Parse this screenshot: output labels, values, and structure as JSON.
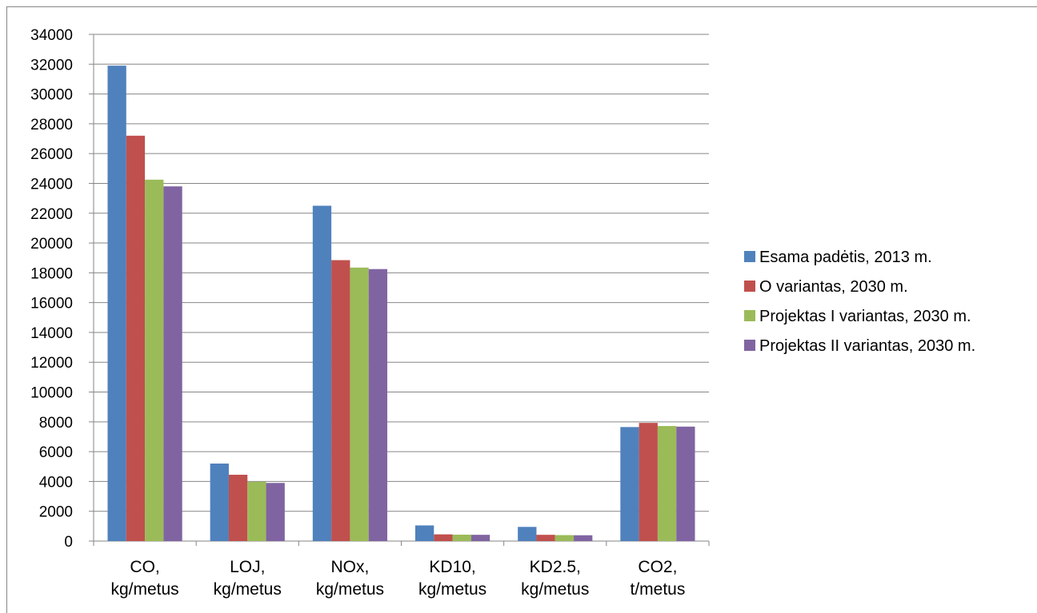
{
  "chart_data": {
    "type": "bar",
    "title": "",
    "xlabel": "",
    "ylabel": "",
    "ylim": [
      0,
      34000
    ],
    "ytick_step": 2000,
    "yticks": [
      "0",
      "2000",
      "4000",
      "6000",
      "8000",
      "10000",
      "12000",
      "14000",
      "16000",
      "18000",
      "20000",
      "22000",
      "24000",
      "26000",
      "28000",
      "30000",
      "32000",
      "34000"
    ],
    "grid": true,
    "legend_position": "right",
    "categories": [
      [
        "CO,",
        "kg/metus"
      ],
      [
        "LOJ,",
        "kg/metus"
      ],
      [
        "NOx,",
        "kg/metus"
      ],
      [
        "KD10,",
        "kg/metus"
      ],
      [
        "KD2.5,",
        "kg/metus"
      ],
      [
        "CO2,",
        "t/metus"
      ]
    ],
    "series": [
      {
        "name": "Esama padėtis, 2013 m.",
        "color": "#4F81BD",
        "values": [
          31900,
          5200,
          22500,
          1050,
          950,
          7650
        ]
      },
      {
        "name": "O variantas, 2030 m.",
        "color": "#C0504D",
        "values": [
          27200,
          4450,
          18850,
          450,
          420,
          7930
        ]
      },
      {
        "name": "Projektas I variantas, 2030 m.",
        "color": "#9BBB59",
        "values": [
          24250,
          3980,
          18350,
          430,
          400,
          7720
        ]
      },
      {
        "name": "Projektas II variantas, 2030 m.",
        "color": "#8064A2",
        "values": [
          23800,
          3900,
          18250,
          420,
          390,
          7680
        ]
      }
    ]
  }
}
